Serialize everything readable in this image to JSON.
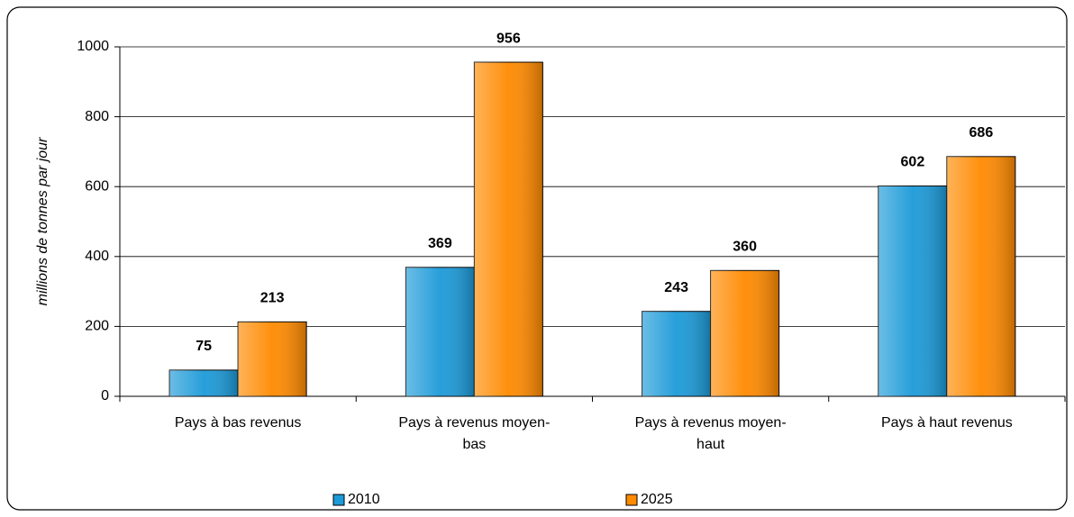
{
  "chart_data": {
    "type": "bar",
    "y_label": "millions de tonnes par jour",
    "categories": [
      "Pays à bas revenus",
      "Pays à revenus moyen-bas",
      "Pays à revenus moyen-haut",
      "Pays à haut revenus"
    ],
    "series": [
      {
        "name": "2010",
        "color": "#1c9ad8",
        "label_color": "#1f22c0",
        "values": [
          75,
          369,
          243,
          602
        ]
      },
      {
        "name": "2025",
        "color": "#ff8a00",
        "label_color": "#d0201c",
        "values": [
          213,
          956,
          360,
          686
        ]
      }
    ],
    "ylim": [
      0,
      1000
    ],
    "yticks": [
      0,
      200,
      400,
      600,
      800,
      1000
    ],
    "grid": true,
    "legend": "bottom"
  }
}
